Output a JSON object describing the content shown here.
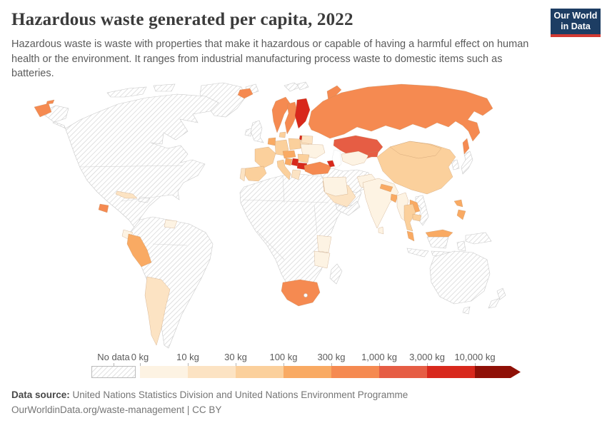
{
  "header": {
    "title": "Hazardous waste generated per capita, 2022",
    "subtitle": "Hazardous waste is waste with properties that make it hazardous or capable of having a harmful effect on human health or the environment. It ranges from industrial manufacturing process waste to domestic items such as batteries.",
    "logo": {
      "line1": "Our World",
      "line2": "in Data",
      "bg_color": "#1d3d63",
      "accent_color": "#d23a33"
    }
  },
  "chart_data": {
    "type": "choropleth-map",
    "title": "Hazardous waste generated per capita, 2022",
    "unit": "kg per capita",
    "legend": {
      "no_data_label": "No data",
      "bin_labels": [
        "0 kg",
        "10 kg",
        "30 kg",
        "100 kg",
        "300 kg",
        "1,000 kg",
        "3,000 kg",
        "10,000 kg"
      ],
      "bin_ranges": [
        "0-10 kg",
        "10-30 kg",
        "30-100 kg",
        "100-300 kg",
        "300-1,000 kg",
        "1,000-3,000 kg",
        "3,000-10,000 kg",
        "10,000+ kg"
      ],
      "bin_colors": [
        "#fdf3e3",
        "#fce3c3",
        "#fbd09c",
        "#f9aa63",
        "#f58a51",
        "#e65d44",
        "#d8281c",
        "#8f1007"
      ],
      "no_data_hatch_color": "#d6d6d6"
    },
    "regions": [
      {
        "id": "canadian-arctic",
        "name": "Canadian Arctic islands",
        "bin": null
      },
      {
        "id": "greenland",
        "name": "Greenland",
        "bin": null
      },
      {
        "id": "north-america",
        "name": "Canada / United States / Mexico",
        "bin": null
      },
      {
        "id": "hispaniola",
        "name": "Haiti / Dominican Republic",
        "bin": null
      },
      {
        "id": "south-america",
        "name": "Brazil / Colombia / Venezuela / Bolivia / Chile / Paraguay",
        "bin": null
      },
      {
        "id": "africa",
        "name": "Most of Africa",
        "bin": null
      },
      {
        "id": "madagascar",
        "name": "Madagascar",
        "bin": null
      },
      {
        "id": "lesotho",
        "name": "Lesotho",
        "bin": null
      },
      {
        "id": "svalbard",
        "name": "Svalbard and northern islands",
        "bin": null
      },
      {
        "id": "uk",
        "name": "United Kingdom",
        "bin": null
      },
      {
        "id": "ireland",
        "name": "Ireland",
        "bin": null
      },
      {
        "id": "middle-east",
        "name": "Iran / Iraq / Syria / Afghanistan",
        "bin": null
      },
      {
        "id": "yemen-oman",
        "name": "Yemen / Oman",
        "bin": null
      },
      {
        "id": "japan",
        "name": "Japan",
        "bin": null
      },
      {
        "id": "korea-peninsula",
        "name": "Korean Peninsula",
        "bin": null
      },
      {
        "id": "vietnam",
        "name": "Vietnam",
        "bin": null
      },
      {
        "id": "borneo-kalimantan",
        "name": "Kalimantan (Indonesia/Brunei)",
        "bin": null
      },
      {
        "id": "indonesia",
        "name": "Indonesia",
        "bin": null
      },
      {
        "id": "new-guinea",
        "name": "Papua New Guinea",
        "bin": null
      },
      {
        "id": "australia",
        "name": "Australia",
        "bin": null
      },
      {
        "id": "tasmania",
        "name": "Tasmania",
        "bin": null
      },
      {
        "id": "new-zealand",
        "name": "New Zealand",
        "bin": null
      },
      {
        "id": "russia",
        "name": "Russia",
        "bin": 4
      },
      {
        "id": "russia-far-east",
        "name": "Russia (Chukotka)",
        "bin": 4
      },
      {
        "id": "novaya-zemlya",
        "name": "Russia (Novaya Zemlya)",
        "bin": 4
      },
      {
        "id": "kazakhstan",
        "name": "Kazakhstan",
        "bin": 5
      },
      {
        "id": "finland",
        "name": "Finland",
        "bin": 6
      },
      {
        "id": "sweden",
        "name": "Sweden",
        "bin": 4
      },
      {
        "id": "norway",
        "name": "Norway",
        "bin": 4
      },
      {
        "id": "iceland",
        "name": "Iceland",
        "bin": 4
      },
      {
        "id": "estonia",
        "name": "Estonia",
        "bin": 6
      },
      {
        "id": "latvia-lithuania",
        "name": "Latvia / Lithuania",
        "bin": 1
      },
      {
        "id": "denmark",
        "name": "Denmark",
        "bin": 2
      },
      {
        "id": "germany",
        "name": "Germany",
        "bin": 2
      },
      {
        "id": "poland",
        "name": "Poland",
        "bin": 2
      },
      {
        "id": "belarus",
        "name": "Belarus",
        "bin": 1
      },
      {
        "id": "ukraine",
        "name": "Ukraine",
        "bin": 0
      },
      {
        "id": "france",
        "name": "France",
        "bin": 2
      },
      {
        "id": "spain",
        "name": "Spain",
        "bin": 2
      },
      {
        "id": "portugal",
        "name": "Portugal",
        "bin": 1
      },
      {
        "id": "italy",
        "name": "Italy",
        "bin": 2
      },
      {
        "id": "central-europe",
        "name": "Czechia / Austria / Switzerland / Hungary",
        "bin": 3
      },
      {
        "id": "benelux",
        "name": "Netherlands / Belgium",
        "bin": 3
      },
      {
        "id": "romania",
        "name": "Romania",
        "bin": 2
      },
      {
        "id": "serbia",
        "name": "Serbia",
        "bin": 6
      },
      {
        "id": "bulgaria",
        "name": "Bulgaria",
        "bin": 6
      },
      {
        "id": "croatia-bosnia",
        "name": "Croatia / Bosnia",
        "bin": 3
      },
      {
        "id": "greece",
        "name": "Greece",
        "bin": 1
      },
      {
        "id": "turkey",
        "name": "Turkey",
        "bin": 4
      },
      {
        "id": "caucasus",
        "name": "Georgia / Azerbaijan",
        "bin": 6
      },
      {
        "id": "saudi-arabia",
        "name": "Saudi Arabia",
        "bin": 1
      },
      {
        "id": "egypt",
        "name": "Egypt",
        "bin": 0
      },
      {
        "id": "kenya",
        "name": "Kenya",
        "bin": 0
      },
      {
        "id": "tanzania",
        "name": "Tanzania",
        "bin": 0
      },
      {
        "id": "south-africa",
        "name": "South Africa",
        "bin": 4
      },
      {
        "id": "peru",
        "name": "Peru",
        "bin": 3
      },
      {
        "id": "ecuador",
        "name": "Ecuador",
        "bin": 0
      },
      {
        "id": "guyana-suriname",
        "name": "Guyana / Suriname",
        "bin": 0
      },
      {
        "id": "argentina",
        "name": "Argentina",
        "bin": 1
      },
      {
        "id": "cuba",
        "name": "Cuba",
        "bin": 1
      },
      {
        "id": "guatemala",
        "name": "Guatemala",
        "bin": 4
      },
      {
        "id": "pakistan",
        "name": "Pakistan",
        "bin": 0
      },
      {
        "id": "india",
        "name": "India",
        "bin": 0
      },
      {
        "id": "nepal",
        "name": "Nepal",
        "bin": 3
      },
      {
        "id": "bangladesh",
        "name": "Bangladesh",
        "bin": 3
      },
      {
        "id": "sri-lanka",
        "name": "Sri Lanka",
        "bin": 0
      },
      {
        "id": "central-asia",
        "name": "Turkmenistan / Uzbekistan",
        "bin": 0
      },
      {
        "id": "kyrgyzstan",
        "name": "Kyrgyzstan",
        "bin": 5
      },
      {
        "id": "china",
        "name": "China",
        "bin": 2
      },
      {
        "id": "mongolia",
        "name": "Mongolia",
        "bin": 2
      },
      {
        "id": "myanmar",
        "name": "Myanmar",
        "bin": 0
      },
      {
        "id": "thailand",
        "name": "Thailand",
        "bin": 2
      },
      {
        "id": "laos",
        "name": "Laos",
        "bin": 3
      },
      {
        "id": "cambodia",
        "name": "Cambodia",
        "bin": 2
      },
      {
        "id": "malaysia",
        "name": "Malaysia",
        "bin": 3
      },
      {
        "id": "philippines",
        "name": "Philippines",
        "bin": 3
      }
    ]
  },
  "footer": {
    "source_label": "Data source:",
    "source_text": "United Nations Statistics Division and United Nations Environment Programme",
    "url": "OurWorldinData.org/waste-management",
    "license": " | CC BY"
  }
}
